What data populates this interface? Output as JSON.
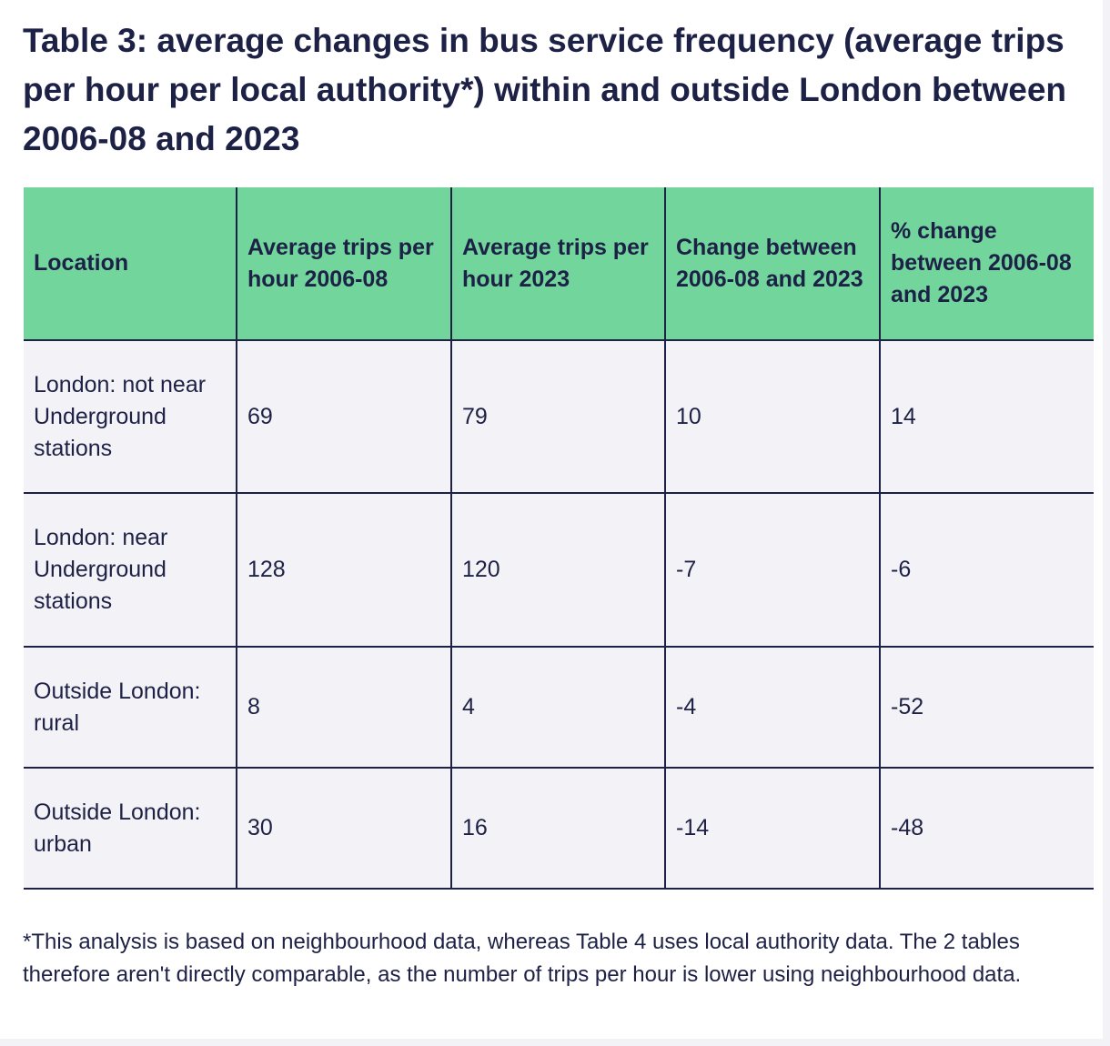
{
  "title": "Table 3: average changes in bus service frequency (average trips per hour per local authority*) within and outside London between 2006-08 and 2023",
  "table": {
    "headers": [
      "Location",
      "Average trips per hour 2006-08",
      "Average trips per hour 2023",
      "Change between 2006-08 and 2023",
      "% change between 2006-08 and 2023"
    ],
    "rows": [
      [
        "London: not near Underground stations",
        "69",
        "79",
        "10",
        "14"
      ],
      [
        "London: near Underground stations",
        "128",
        "120",
        "-7",
        "-6"
      ],
      [
        "Outside London: rural",
        "8",
        "4",
        "-4",
        "-52"
      ],
      [
        "Outside London: urban",
        "30",
        "16",
        "-14",
        "-48"
      ]
    ]
  },
  "footnote": "*This analysis is based on neighbourhood data, whereas Table 4 uses local authority data. The 2 tables therefore aren't directly comparable, as the number of trips per hour is lower using neighbourhood data."
}
